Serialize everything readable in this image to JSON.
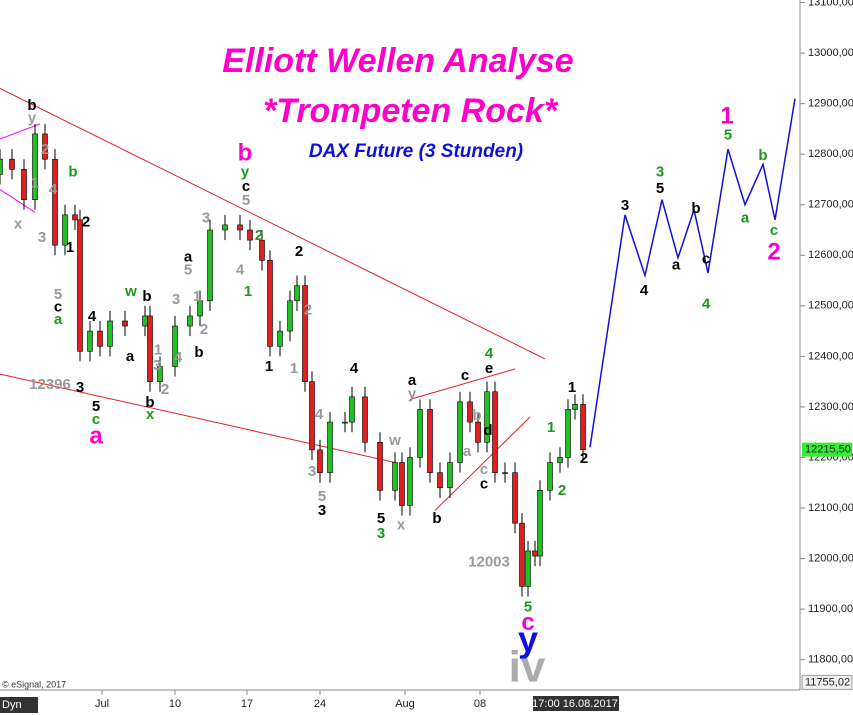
{
  "chart_data": {
    "type": "candlestick",
    "title": "Elliott Wellen Analyse",
    "subtitle": "*Trompeten Rock*",
    "instrument": "DAX Future (3 Stunden)",
    "credit": "© eSignal, 2017",
    "corner_label": "Dyn",
    "xlim": [
      0,
      80
    ],
    "ylim": [
      11740,
      13105
    ],
    "xticks": [
      {
        "value": 10.2,
        "label": "Jul"
      },
      {
        "value": 17.5,
        "label": "10"
      },
      {
        "value": 24.7,
        "label": "17"
      },
      {
        "value": 32,
        "label": "24"
      },
      {
        "value": 40.5,
        "label": "Aug"
      },
      {
        "value": 48,
        "label": "08"
      }
    ],
    "yticks": [
      {
        "value": 11800,
        "label": "11800,00"
      },
      {
        "value": 11900,
        "label": "11900,00"
      },
      {
        "value": 12000,
        "label": "12000,00"
      },
      {
        "value": 12100,
        "label": "12100,00"
      },
      {
        "value": 12200,
        "label": "12200,00"
      },
      {
        "value": 12300,
        "label": "12300,00"
      },
      {
        "value": 12400,
        "label": "12400,00"
      },
      {
        "value": 12500,
        "label": "12500,00"
      },
      {
        "value": 12600,
        "label": "12600,00"
      },
      {
        "value": 12700,
        "label": "12700,00"
      },
      {
        "value": 12800,
        "label": "12800,00"
      },
      {
        "value": 12900,
        "label": "12900,00"
      },
      {
        "value": 13000,
        "label": "13000,00"
      },
      {
        "value": 13100,
        "label": "13100,00"
      }
    ],
    "current_time": {
      "value": 57.5,
      "label": "17:00 16.08.2017"
    },
    "last_price": {
      "value": 12215.5,
      "label": "12215,50"
    },
    "bottom_price": {
      "value": 11755.02,
      "label": "11755,02"
    },
    "up_color": "#22c022",
    "down_color": "#e02020",
    "x": [
      0,
      1.2,
      2.4,
      3.5,
      4.5,
      5.5,
      6.5,
      7.5,
      8,
      9,
      10,
      11,
      12.5,
      14.5,
      15,
      16,
      17.5,
      19,
      20,
      21,
      22.5,
      24,
      25,
      26.2,
      27,
      28,
      29,
      29.7,
      30.5,
      31.2,
      32,
      33,
      34.5,
      35.2,
      36.5,
      38,
      39.5,
      40.2,
      41,
      42,
      43,
      44,
      45,
      46,
      47,
      47.8,
      48.7,
      49.5,
      50.5,
      51.5,
      52.2,
      52.8,
      53.5,
      54,
      55,
      56,
      56.8,
      57.5,
      58.3
    ],
    "open": [
      12760,
      12790,
      12770,
      12710,
      12840,
      12790,
      12620,
      12680,
      12670,
      12410,
      12450,
      12420,
      12470,
      12460,
      12480,
      12350,
      12380,
      12460,
      12480,
      12510,
      12650,
      12660,
      12650,
      12630,
      12590,
      12420,
      12450,
      12510,
      12540,
      12350,
      12215,
      12170,
      12270,
      12270,
      12320,
      12230,
      12135,
      12190,
      12105,
      12200,
      12295,
      12170,
      12140,
      12190,
      12310,
      12270,
      12230,
      12330,
      12170,
      12170,
      12070,
      11945,
      12015,
      12005,
      12135,
      12190,
      12200,
      12295,
      12305
    ],
    "high": [
      12810,
      12810,
      12790,
      12860,
      12860,
      12810,
      12700,
      12700,
      12690,
      12470,
      12470,
      12490,
      12490,
      12500,
      12500,
      12400,
      12480,
      12500,
      12530,
      12670,
      12680,
      12680,
      12670,
      12650,
      12610,
      12470,
      12530,
      12560,
      12560,
      12370,
      12235,
      12290,
      12290,
      12340,
      12340,
      12250,
      12210,
      12210,
      12220,
      12315,
      12315,
      12190,
      12210,
      12330,
      12330,
      12290,
      12350,
      12350,
      12190,
      12190,
      12090,
      12035,
      12035,
      12155,
      12210,
      12220,
      12315,
      12325,
      12325
    ],
    "low": [
      12740,
      12750,
      12690,
      12690,
      12770,
      12600,
      12600,
      12650,
      12390,
      12390,
      12400,
      12400,
      12440,
      12440,
      12330,
      12330,
      12360,
      12440,
      12460,
      12490,
      12630,
      12630,
      12610,
      12570,
      12400,
      12400,
      12430,
      12490,
      12330,
      12195,
      12150,
      12150,
      12250,
      12250,
      12210,
      12115,
      12115,
      12085,
      12085,
      12180,
      12150,
      12120,
      12120,
      12170,
      12250,
      12210,
      12210,
      12150,
      12150,
      12050,
      11925,
      11925,
      11985,
      11985,
      12115,
      12170,
      12180,
      12275,
      12195.5
    ],
    "close": [
      12790,
      12770,
      12710,
      12840,
      12790,
      12620,
      12680,
      12670,
      12410,
      12450,
      12420,
      12470,
      12460,
      12480,
      12350,
      12380,
      12460,
      12480,
      12510,
      12650,
      12660,
      12650,
      12630,
      12590,
      12420,
      12450,
      12510,
      12540,
      12350,
      12215,
      12170,
      12270,
      12270,
      12320,
      12230,
      12135,
      12190,
      12105,
      12200,
      12295,
      12170,
      12140,
      12190,
      12310,
      12270,
      12230,
      12330,
      12170,
      12170,
      12070,
      11945,
      12015,
      12005,
      12135,
      12190,
      12200,
      12295,
      12305,
      12215.5
    ],
    "trendlines": [
      {
        "color": "#e02020",
        "x": [
          0,
          54.5
        ],
        "y": [
          12930,
          12395
        ]
      },
      {
        "color": "#e02020",
        "x": [
          0,
          39.5
        ],
        "y": [
          12365,
          12190
        ]
      },
      {
        "color": "#e02020",
        "x": [
          41,
          51.5
        ],
        "y": [
          12315,
          12375
        ]
      },
      {
        "color": "#e02020",
        "x": [
          43.5,
          53
        ],
        "y": [
          12095,
          12280
        ]
      },
      {
        "color": "#ff00ff",
        "x": [
          0,
          4
        ],
        "y": [
          12830,
          12860
        ]
      },
      {
        "color": "#ff00ff",
        "x": [
          0,
          3.5
        ],
        "y": [
          12730,
          12685
        ]
      }
    ],
    "projection": {
      "color": "#1010dd",
      "x": [
        59,
        62.5,
        64.5,
        66.2,
        67.8,
        69.4,
        70.8,
        72.8,
        74.5,
        76.3,
        77.5,
        79.5
      ],
      "y": [
        12220,
        12680,
        12560,
        12710,
        12595,
        12690,
        12565,
        12810,
        12700,
        12780,
        12670,
        12910
      ]
    },
    "labels": [
      {
        "text": "b",
        "x": 3.2,
        "y": 12895,
        "color": "#000000"
      },
      {
        "text": "y",
        "x": 3.2,
        "y": 12871,
        "color": "#999999"
      },
      {
        "text": "2",
        "x": 4.5,
        "y": 12808,
        "color": "#999999"
      },
      {
        "text": "1",
        "x": 3.5,
        "y": 12742,
        "color": "#999999"
      },
      {
        "text": "4",
        "x": 5.3,
        "y": 12729,
        "color": "#999999"
      },
      {
        "text": "x",
        "x": 1.8,
        "y": 12661,
        "color": "#999999"
      },
      {
        "text": "3",
        "x": 4.2,
        "y": 12634,
        "color": "#999999"
      },
      {
        "text": "b",
        "x": 7.3,
        "y": 12764,
        "color": "#1a9a1a"
      },
      {
        "text": "2",
        "x": 8.6,
        "y": 12665,
        "color": "#000000"
      },
      {
        "text": "1",
        "x": 7,
        "y": 12614,
        "color": "#000000"
      },
      {
        "text": "5",
        "x": 5.8,
        "y": 12521,
        "color": "#999999"
      },
      {
        "text": "c",
        "x": 5.8,
        "y": 12497,
        "color": "#000000"
      },
      {
        "text": "a",
        "x": 5.8,
        "y": 12472,
        "color": "#1a9a1a"
      },
      {
        "text": "4",
        "x": 9.2,
        "y": 12478,
        "color": "#000000"
      },
      {
        "text": "3",
        "x": 8,
        "y": 12337,
        "color": "#000000"
      },
      {
        "text": "5",
        "x": 9.6,
        "y": 12300,
        "color": "#000000"
      },
      {
        "text": "c",
        "x": 9.6,
        "y": 12274,
        "color": "#1a9a1a"
      },
      {
        "text": "12396",
        "x": 5,
        "y": 12343,
        "color": "#999999"
      },
      {
        "text": "w",
        "x": 13.1,
        "y": 12527,
        "color": "#1a9a1a"
      },
      {
        "text": "b",
        "x": 14.7,
        "y": 12517,
        "color": "#000000"
      },
      {
        "text": "a",
        "x": 13,
        "y": 12399,
        "color": "#000000"
      },
      {
        "text": "1",
        "x": 15.8,
        "y": 12412,
        "color": "#999999"
      },
      {
        "text": "3",
        "x": 15.7,
        "y": 12381,
        "color": "#999999"
      },
      {
        "text": "2",
        "x": 16.5,
        "y": 12333,
        "color": "#999999"
      },
      {
        "text": "b",
        "x": 15,
        "y": 12308,
        "color": "#000000"
      },
      {
        "text": "x",
        "x": 15,
        "y": 12284,
        "color": "#1a9a1a"
      },
      {
        "text": "4",
        "x": 17.8,
        "y": 12397,
        "color": "#999999"
      },
      {
        "text": "a",
        "x": 18.8,
        "y": 12596,
        "color": "#000000"
      },
      {
        "text": "5",
        "x": 18.8,
        "y": 12570,
        "color": "#999999"
      },
      {
        "text": "3",
        "x": 17.6,
        "y": 12511,
        "color": "#999999"
      },
      {
        "text": "1",
        "x": 19.7,
        "y": 12517,
        "color": "#999999"
      },
      {
        "text": "2",
        "x": 20.4,
        "y": 12452,
        "color": "#999999"
      },
      {
        "text": "b",
        "x": 19.9,
        "y": 12407,
        "color": "#000000"
      },
      {
        "text": "3",
        "x": 20.6,
        "y": 12673,
        "color": "#999999"
      },
      {
        "text": "y",
        "x": 24.5,
        "y": 12764,
        "color": "#1a9a1a"
      },
      {
        "text": "c",
        "x": 24.6,
        "y": 12735,
        "color": "#000000"
      },
      {
        "text": "5",
        "x": 24.6,
        "y": 12707,
        "color": "#999999"
      },
      {
        "text": "2",
        "x": 25.9,
        "y": 12638,
        "color": "#1a9a1a"
      },
      {
        "text": "4",
        "x": 24,
        "y": 12570,
        "color": "#999999"
      },
      {
        "text": "1",
        "x": 24.8,
        "y": 12527,
        "color": "#1a9a1a"
      },
      {
        "text": "2",
        "x": 29.9,
        "y": 12606,
        "color": "#000000"
      },
      {
        "text": "2",
        "x": 30.8,
        "y": 12491,
        "color": "#999999"
      },
      {
        "text": "1",
        "x": 26.9,
        "y": 12379,
        "color": "#000000"
      },
      {
        "text": "1",
        "x": 29.4,
        "y": 12375,
        "color": "#999999"
      },
      {
        "text": "4",
        "x": 31.9,
        "y": 12284,
        "color": "#999999"
      },
      {
        "text": "3",
        "x": 31.2,
        "y": 12171,
        "color": "#999999"
      },
      {
        "text": "5",
        "x": 32.2,
        "y": 12122,
        "color": "#999999"
      },
      {
        "text": "3",
        "x": 32.2,
        "y": 12094,
        "color": "#000000"
      },
      {
        "text": "4",
        "x": 35.4,
        "y": 12375,
        "color": "#000000"
      },
      {
        "text": "w",
        "x": 39.5,
        "y": 12233,
        "color": "#999999"
      },
      {
        "text": "5",
        "x": 38.1,
        "y": 12078,
        "color": "#000000"
      },
      {
        "text": "3",
        "x": 38.1,
        "y": 12049,
        "color": "#1a9a1a"
      },
      {
        "text": "x",
        "x": 40.1,
        "y": 12065,
        "color": "#999999"
      },
      {
        "text": "a",
        "x": 41.2,
        "y": 12351,
        "color": "#000000"
      },
      {
        "text": "y",
        "x": 41.2,
        "y": 12325,
        "color": "#999999"
      },
      {
        "text": "b",
        "x": 43.7,
        "y": 12078,
        "color": "#000000"
      },
      {
        "text": "c",
        "x": 46.5,
        "y": 12361,
        "color": "#000000"
      },
      {
        "text": "e",
        "x": 48.9,
        "y": 12375,
        "color": "#000000"
      },
      {
        "text": "4",
        "x": 48.9,
        "y": 12405,
        "color": "#1a9a1a"
      },
      {
        "text": "b",
        "x": 47.7,
        "y": 12282,
        "color": "#999999"
      },
      {
        "text": "d",
        "x": 48.8,
        "y": 12252,
        "color": "#000000"
      },
      {
        "text": "a",
        "x": 46.7,
        "y": 12211,
        "color": "#999999"
      },
      {
        "text": "c",
        "x": 48.4,
        "y": 12175,
        "color": "#999999"
      },
      {
        "text": "c",
        "x": 48.4,
        "y": 12146,
        "color": "#000000"
      },
      {
        "text": "12003",
        "x": 48.9,
        "y": 11992,
        "color": "#999999"
      },
      {
        "text": "1",
        "x": 55.1,
        "y": 12258,
        "color": "#1a9a1a"
      },
      {
        "text": "1",
        "x": 57.2,
        "y": 12337,
        "color": "#000000"
      },
      {
        "text": "2",
        "x": 58.4,
        "y": 12197,
        "color": "#000000"
      },
      {
        "text": "2",
        "x": 56.2,
        "y": 12134,
        "color": "#1a9a1a"
      },
      {
        "text": "5",
        "x": 52.8,
        "y": 11903,
        "color": "#1a9a1a"
      },
      {
        "text": "3",
        "x": 62.5,
        "y": 12697,
        "color": "#000000"
      },
      {
        "text": "4",
        "x": 64.4,
        "y": 12529,
        "color": "#000000"
      },
      {
        "text": "3",
        "x": 66,
        "y": 12764,
        "color": "#1a9a1a"
      },
      {
        "text": "5",
        "x": 66,
        "y": 12731,
        "color": "#000000"
      },
      {
        "text": "a",
        "x": 67.6,
        "y": 12580,
        "color": "#000000"
      },
      {
        "text": "b",
        "x": 69.6,
        "y": 12691,
        "color": "#000000"
      },
      {
        "text": "c",
        "x": 70.6,
        "y": 12592,
        "color": "#000000"
      },
      {
        "text": "4",
        "x": 70.6,
        "y": 12503,
        "color": "#1a9a1a"
      },
      {
        "text": "5",
        "x": 72.8,
        "y": 12837,
        "color": "#1a9a1a"
      },
      {
        "text": "a",
        "x": 74.5,
        "y": 12673,
        "color": "#1a9a1a"
      },
      {
        "text": "b",
        "x": 76.3,
        "y": 12796,
        "color": "#1a9a1a"
      },
      {
        "text": "c",
        "x": 77.4,
        "y": 12648,
        "color": "#1a9a1a"
      }
    ],
    "degree_labels": [
      {
        "text": "a",
        "x": 9.6,
        "y": 12240,
        "color": "#ff00cc"
      },
      {
        "text": "b",
        "x": 24.5,
        "y": 12800,
        "color": "#ff00cc"
      },
      {
        "text": "c",
        "x": 52.8,
        "y": 11871,
        "color": "#ff00cc"
      },
      {
        "text": "1",
        "x": 72.7,
        "y": 12873,
        "color": "#ff00cc"
      },
      {
        "text": "2",
        "x": 77.4,
        "y": 12604,
        "color": "#ff00cc"
      }
    ],
    "major_labels": [
      {
        "text": "y",
        "x": 52.8,
        "y": 11835,
        "color": "#1010dd"
      },
      {
        "text": "iv",
        "x": 52.7,
        "y": 11780,
        "color": "#aaaaaa"
      }
    ]
  }
}
